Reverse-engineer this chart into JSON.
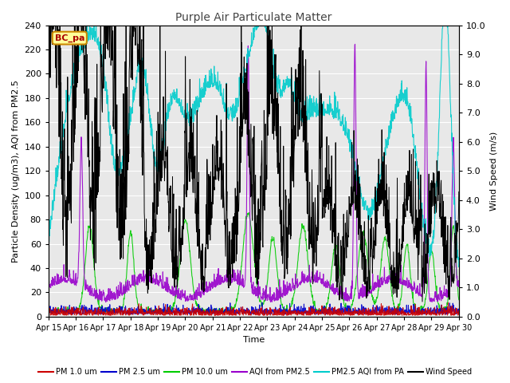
{
  "title": "Purple Air Particulate Matter",
  "ylabel_left": "Particle Density (ug/m3), AQI from PM2.5",
  "ylabel_right": "Wind Speed (m/s)",
  "xlabel": "Time",
  "ylim_left": [
    0,
    240
  ],
  "ylim_right": [
    0,
    10
  ],
  "yticks_left": [
    0,
    20,
    40,
    60,
    80,
    100,
    120,
    140,
    160,
    180,
    200,
    220,
    240
  ],
  "yticks_right": [
    0.0,
    1.0,
    2.0,
    3.0,
    4.0,
    5.0,
    6.0,
    7.0,
    8.0,
    9.0,
    10.0
  ],
  "xticklabels": [
    "Apr 15",
    "Apr 16",
    "Apr 17",
    "Apr 18",
    "Apr 19",
    "Apr 20",
    "Apr 21",
    "Apr 22",
    "Apr 23",
    "Apr 24",
    "Apr 25",
    "Apr 26",
    "Apr 27",
    "Apr 28",
    "Apr 29",
    "Apr 30"
  ],
  "colors": {
    "pm1": "#cc0000",
    "pm25": "#0000cc",
    "pm10": "#00cc00",
    "aqi_pm25": "#9900cc",
    "aqi_pa": "#00cccc",
    "wind": "#000000"
  },
  "legend_label": "BC_pa",
  "legend_box_color": "#ffff99",
  "legend_box_edge": "#cc8800",
  "plot_bg": "#e8e8e8",
  "n_points": 1440
}
